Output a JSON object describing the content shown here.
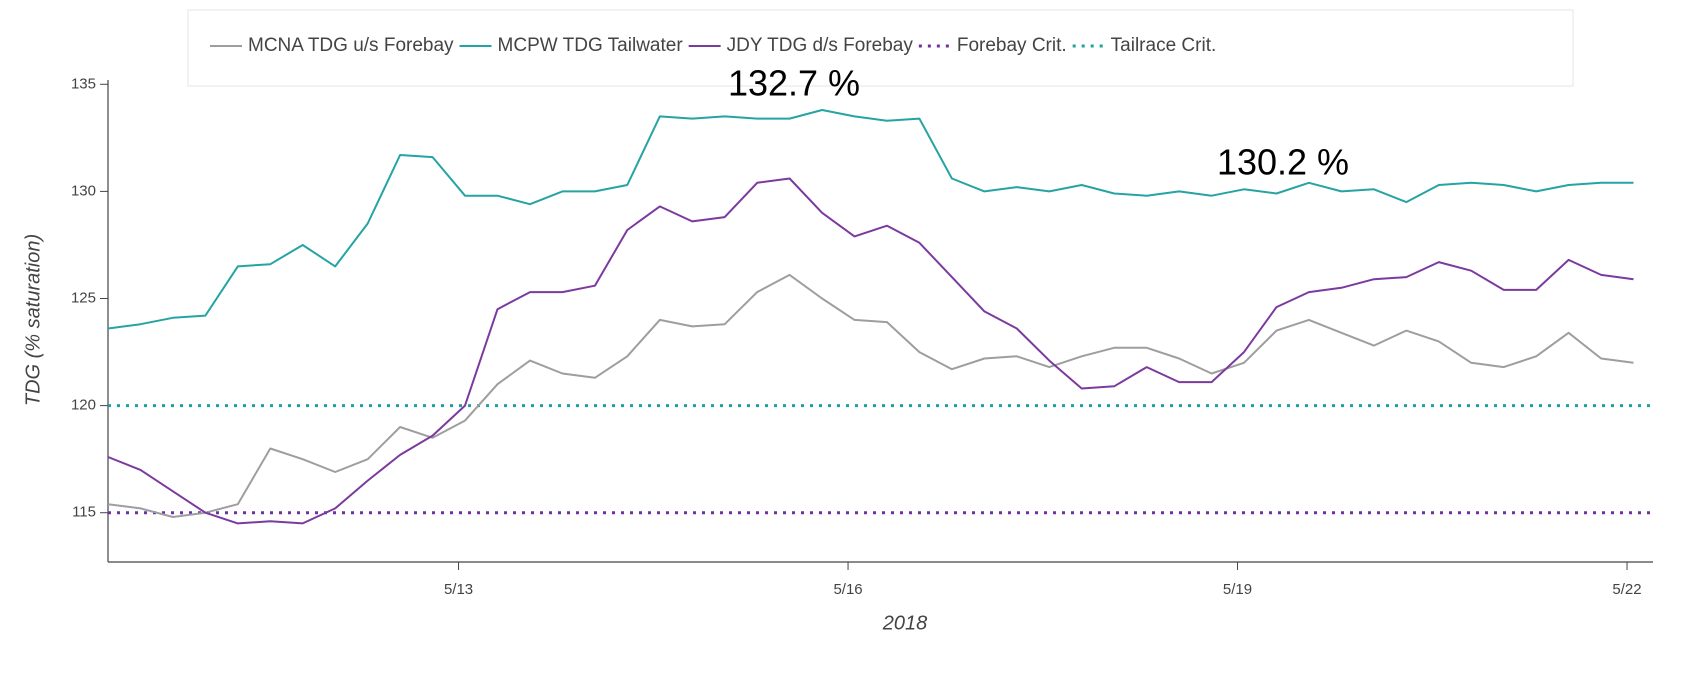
{
  "chart_data": {
    "type": "line",
    "x_label": "2018",
    "y_label": "TDG (% saturation)",
    "annotations": [
      "132.7 %",
      "130.2 %"
    ],
    "x": [
      10.3,
      10.55,
      10.8,
      11.05,
      11.3,
      11.55,
      11.8,
      12.05,
      12.3,
      12.55,
      12.8,
      13.05,
      13.3,
      13.55,
      13.8,
      14.05,
      14.3,
      14.55,
      14.8,
      15.05,
      15.3,
      15.55,
      15.8,
      16.05,
      16.3,
      16.55,
      16.8,
      17.05,
      17.3,
      17.55,
      17.8,
      18.05,
      18.3,
      18.55,
      18.8,
      19.05,
      19.3,
      19.55,
      19.8,
      20.05,
      20.3,
      20.55,
      20.8,
      21.05,
      21.3,
      21.55,
      21.8,
      22.05
    ],
    "series": [
      {
        "name": "MCNA TDG u/s Forebay",
        "color": "#9e9e9e",
        "values": [
          115.4,
          115.2,
          114.8,
          115.0,
          115.4,
          118.0,
          117.5,
          116.9,
          117.5,
          119.0,
          118.5,
          119.3,
          121.0,
          122.1,
          121.5,
          121.3,
          122.3,
          124.0,
          123.7,
          123.8,
          125.3,
          126.1,
          125.0,
          124.0,
          123.9,
          122.5,
          121.7,
          122.2,
          122.3,
          121.8,
          122.3,
          122.7,
          122.7,
          122.2,
          121.5,
          122.0,
          123.5,
          124.0,
          123.4,
          122.8,
          123.5,
          123.0,
          122.0,
          121.8,
          122.3,
          123.4,
          122.2,
          122.0
        ]
      },
      {
        "name": "MCPW TDG Tailwater",
        "color": "#26a3a3",
        "values": [
          123.6,
          123.8,
          124.1,
          124.2,
          126.5,
          126.6,
          127.5,
          126.5,
          128.5,
          131.7,
          131.6,
          129.8,
          129.8,
          129.4,
          130.0,
          130.0,
          130.3,
          133.5,
          133.4,
          133.5,
          133.4,
          133.4,
          133.8,
          133.5,
          133.3,
          133.4,
          130.6,
          130.0,
          130.2,
          130.0,
          130.3,
          129.9,
          129.8,
          130.0,
          129.8,
          130.1,
          129.9,
          130.4,
          130.0,
          130.1,
          129.5,
          130.3,
          130.4,
          130.3,
          130.0,
          130.3,
          130.4,
          130.4
        ]
      },
      {
        "name": "JDY TDG d/s Forebay",
        "color": "#7b3a9e",
        "values": [
          117.6,
          117.0,
          116.0,
          115.0,
          114.5,
          114.6,
          114.5,
          115.2,
          116.5,
          117.7,
          118.6,
          120.0,
          124.5,
          125.3,
          125.3,
          125.6,
          128.2,
          129.3,
          128.6,
          128.8,
          130.4,
          130.6,
          129.0,
          127.9,
          128.4,
          127.6,
          126.0,
          124.4,
          123.6,
          122.1,
          120.8,
          120.9,
          121.8,
          121.1,
          121.1,
          122.5,
          124.6,
          125.3,
          125.5,
          125.9,
          126.0,
          126.7,
          126.3,
          125.4,
          125.4,
          126.8,
          126.1,
          125.9
        ]
      }
    ],
    "hlines": [
      {
        "name": "Forebay Crit.",
        "value": 115,
        "color": "#7030a0",
        "dash": "dotted"
      },
      {
        "name": "Tailrace Crit.",
        "value": 120,
        "color": "#20a0a0",
        "dash": "dotted"
      }
    ],
    "xlim": [
      10.3,
      22.2
    ],
    "xticks": [
      {
        "value": 13,
        "label": "5/13"
      },
      {
        "value": 16,
        "label": "5/16"
      },
      {
        "value": 19,
        "label": "5/19"
      },
      {
        "value": 22,
        "label": "5/22"
      }
    ],
    "ylim": [
      112.7,
      135.2
    ],
    "yticks": [
      115,
      120,
      125,
      130,
      135
    ],
    "grid": false
  }
}
